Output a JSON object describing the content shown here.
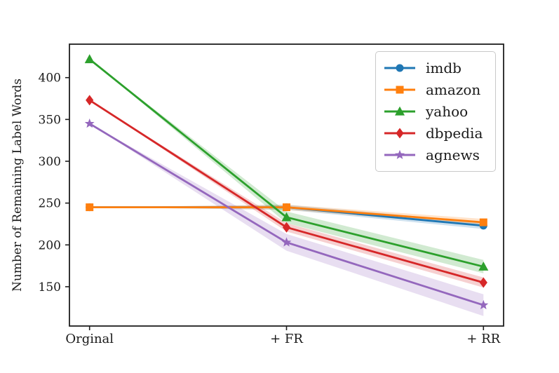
{
  "chart_data": {
    "type": "line",
    "title": "",
    "xlabel": "",
    "ylabel": "Number of Remaining Label Words",
    "categories": [
      "Orginal",
      "+ FR",
      "+ RR"
    ],
    "y_ticks": [
      150,
      200,
      250,
      300,
      350,
      400
    ],
    "ylim": [
      103,
      440
    ],
    "grid": false,
    "legend_position": "upper right",
    "band_note": "shaded confidence band half-widths per point, same units as values",
    "series": [
      {
        "name": "imdb",
        "color": "#1f77b4",
        "marker": "circle",
        "values": [
          245,
          245,
          223
        ],
        "band": [
          0,
          3,
          4
        ]
      },
      {
        "name": "amazon",
        "color": "#ff7f0e",
        "marker": "square",
        "values": [
          245,
          245,
          227
        ],
        "band": [
          0,
          3,
          4
        ]
      },
      {
        "name": "yahoo",
        "color": "#2ca02c",
        "marker": "triangle",
        "values": [
          422,
          233,
          174
        ],
        "band": [
          0,
          7,
          8
        ]
      },
      {
        "name": "dbpedia",
        "color": "#d62728",
        "marker": "diamond",
        "values": [
          373,
          221,
          155
        ],
        "band": [
          0,
          5,
          6
        ]
      },
      {
        "name": "agnews",
        "color": "#9467bd",
        "marker": "star",
        "values": [
          345,
          203,
          128
        ],
        "band": [
          0,
          10,
          13
        ]
      }
    ],
    "axis_color": "#1f1f1f",
    "text_color": "#1a1a1a"
  }
}
